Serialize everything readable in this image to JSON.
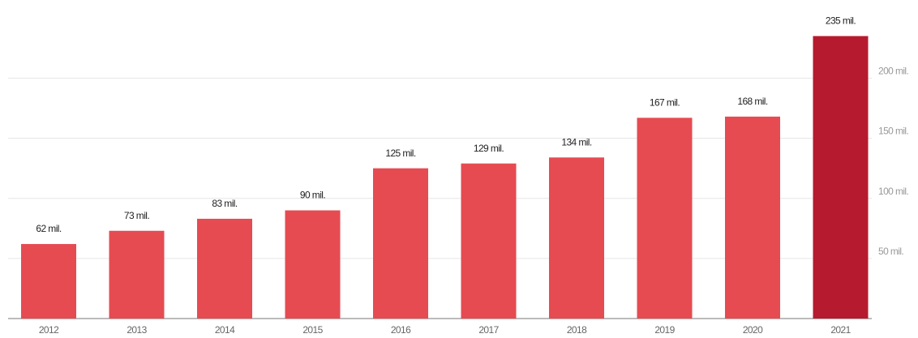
{
  "chart_data": {
    "type": "bar",
    "categories": [
      "2012",
      "2013",
      "2014",
      "2015",
      "2016",
      "2017",
      "2018",
      "2019",
      "2020",
      "2021"
    ],
    "values": [
      62,
      73,
      83,
      90,
      125,
      129,
      134,
      167,
      168,
      235
    ],
    "value_labels": [
      "62 mil.",
      "73 mil.",
      "83 mil.",
      "90 mil.",
      "125 mil.",
      "129 mil.",
      "134 mil.",
      "167 mil.",
      "168 mil.",
      "235 mil."
    ],
    "colors": [
      "#e64b51",
      "#e64b51",
      "#e64b51",
      "#e64b51",
      "#e64b51",
      "#e64b51",
      "#e64b51",
      "#e64b51",
      "#e64b51",
      "#b61a2e"
    ],
    "ylim": [
      0,
      265
    ],
    "yticks": [
      {
        "value": 50,
        "label": "50 mil."
      },
      {
        "value": 100,
        "label": "100 mil."
      },
      {
        "value": 150,
        "label": "150 mil."
      },
      {
        "value": 200,
        "label": "200 mil."
      }
    ],
    "grid": true
  }
}
